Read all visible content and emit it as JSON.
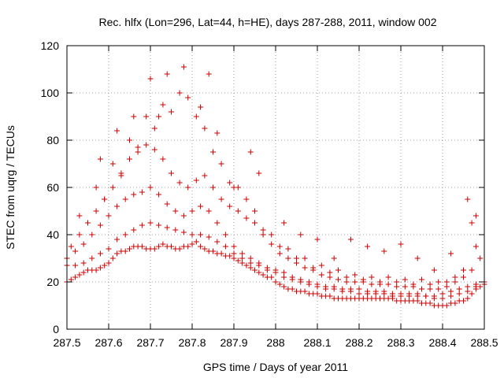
{
  "chart_data": {
    "type": "scatter",
    "title": "Rec. hlfx (Lon=296, Lat=44, h=HE), days 287-288, 2011, window 002",
    "xlabel": "GPS time / Days of year 2011",
    "ylabel": "STEC from uqrg / TECUs",
    "xlim": [
      287.5,
      288.5
    ],
    "ylim": [
      0,
      120
    ],
    "xticks": [
      287.5,
      287.6,
      287.7,
      287.8,
      287.9,
      288,
      288.1,
      288.2,
      288.3,
      288.4,
      288.5
    ],
    "xtick_labels": [
      "287.5",
      "287.6",
      "287.7",
      "287.8",
      "287.9",
      "288",
      "288.1",
      "288.2",
      "288.3",
      "288.4",
      "288.5"
    ],
    "yticks": [
      0,
      20,
      40,
      60,
      80,
      100,
      120
    ],
    "ytick_labels": [
      "0",
      "20",
      "40",
      "60",
      "80",
      "100",
      "120"
    ],
    "grid": true,
    "marker": "plus",
    "color": "#cc0000",
    "series": [
      {
        "name": "",
        "x": [
          287.5,
          287.51,
          287.52,
          287.53,
          287.54,
          287.55,
          287.56,
          287.57,
          287.58,
          287.59,
          287.6,
          287.61,
          287.62,
          287.63,
          287.64,
          287.65,
          287.66,
          287.67,
          287.68,
          287.69,
          287.7,
          287.71,
          287.72,
          287.73,
          287.74,
          287.75,
          287.76,
          287.77,
          287.78,
          287.79,
          287.8,
          287.81,
          287.82,
          287.83,
          287.84,
          287.85,
          287.86,
          287.87,
          287.88,
          287.89,
          287.9,
          287.91,
          287.92,
          287.93,
          287.94,
          287.95,
          287.96,
          287.97,
          287.98,
          287.99,
          288.0,
          288.01,
          288.02,
          288.03,
          288.04,
          288.05,
          288.06,
          288.07,
          288.08,
          288.09,
          288.1,
          288.11,
          288.12,
          288.13,
          288.14,
          288.15,
          288.16,
          288.17,
          288.18,
          288.19,
          288.2,
          288.21,
          288.22,
          288.23,
          288.24,
          288.25,
          288.26,
          288.27,
          288.28,
          288.29,
          288.3,
          288.31,
          288.32,
          288.33,
          288.34,
          288.35,
          288.36,
          288.37,
          288.38,
          288.39,
          288.4,
          288.41,
          288.42,
          288.43,
          288.44,
          288.45,
          288.46,
          288.47,
          288.48,
          288.49,
          288.5
        ],
        "y": [
          20,
          21,
          22,
          23,
          24,
          25,
          25,
          25,
          26,
          27,
          28,
          30,
          32,
          33,
          33,
          34,
          35,
          35,
          35,
          34,
          34,
          34,
          35,
          36,
          35,
          35,
          34,
          34,
          35,
          35,
          36,
          37,
          35,
          34,
          33,
          33,
          32,
          32,
          31,
          31,
          30,
          29,
          28,
          27,
          26,
          25,
          24,
          23,
          22,
          22,
          20,
          19,
          18,
          17,
          17,
          16,
          16,
          16,
          15,
          15,
          15,
          14,
          14,
          14,
          13,
          13,
          13,
          13,
          13,
          13,
          13,
          13,
          13,
          13,
          13,
          13,
          13,
          13,
          13,
          12,
          12,
          12,
          12,
          12,
          12,
          11,
          11,
          11,
          10,
          10,
          10,
          10,
          11,
          11,
          12,
          12,
          13,
          15,
          17,
          18,
          20
        ]
      },
      {
        "name": "",
        "x": [
          287.5,
          287.52,
          287.54,
          287.56,
          287.58,
          287.6,
          287.62,
          287.64,
          287.66,
          287.68,
          287.7,
          287.72,
          287.74,
          287.76,
          287.78,
          287.8,
          287.82,
          287.84,
          287.86,
          287.88,
          287.9,
          287.92,
          287.94,
          287.96,
          287.98,
          288.0,
          288.02,
          288.04,
          288.06,
          288.08,
          288.1,
          288.12,
          288.14,
          288.16,
          288.18,
          288.2,
          288.22,
          288.24,
          288.26,
          288.28,
          288.3,
          288.32,
          288.34,
          288.36,
          288.38,
          288.4,
          288.42,
          288.44,
          288.46,
          288.48,
          288.5
        ],
        "y": [
          27,
          27,
          28,
          30,
          32,
          34,
          38,
          40,
          42,
          44,
          45,
          44,
          43,
          42,
          41,
          40,
          40,
          39,
          37,
          35,
          32,
          30,
          28,
          27,
          25,
          24,
          22,
          21,
          20,
          19,
          18,
          17,
          17,
          16,
          16,
          15,
          15,
          15,
          15,
          14,
          14,
          14,
          14,
          14,
          13,
          13,
          14,
          15,
          16,
          18,
          19
        ]
      },
      {
        "name": "",
        "x": [
          287.5,
          287.52,
          287.54,
          287.56,
          287.58,
          287.6,
          287.62,
          287.64,
          287.66,
          287.68,
          287.7,
          287.72,
          287.74,
          287.76,
          287.78,
          287.8,
          287.82,
          287.84,
          287.86,
          287.88,
          287.9,
          287.92,
          287.94,
          287.96,
          287.98,
          288.0,
          288.02,
          288.04,
          288.06,
          288.08,
          288.1,
          288.12,
          288.14,
          288.16,
          288.18,
          288.2,
          288.22,
          288.24,
          288.26,
          288.28,
          288.3,
          288.32,
          288.34,
          288.36,
          288.38,
          288.4,
          288.42,
          288.44,
          288.46,
          288.48,
          288.5
        ],
        "y": [
          30,
          33,
          36,
          40,
          44,
          48,
          52,
          55,
          57,
          58,
          60,
          57,
          53,
          50,
          48,
          50,
          52,
          50,
          45,
          40,
          35,
          32,
          30,
          28,
          26,
          25,
          24,
          22,
          21,
          20,
          19,
          18,
          18,
          17,
          17,
          17,
          16,
          16,
          16,
          15,
          15,
          15,
          15,
          14,
          14,
          15,
          16,
          17,
          18,
          19,
          20
        ]
      },
      {
        "name": "",
        "x": [
          287.51,
          287.53,
          287.55,
          287.57,
          287.59,
          287.61,
          287.63,
          287.65,
          287.67,
          287.69,
          287.71,
          287.73,
          287.75,
          287.77,
          287.79,
          287.81,
          287.83,
          287.85,
          287.87,
          287.89,
          287.91,
          287.93,
          287.95,
          287.97,
          287.99,
          288.01,
          288.03,
          288.05,
          288.07,
          288.09,
          288.11,
          288.13,
          288.15,
          288.17,
          288.19,
          288.21,
          288.23,
          288.25,
          288.27,
          288.29,
          288.31,
          288.33,
          288.35,
          288.37,
          288.39,
          288.41,
          288.43,
          288.45,
          288.47,
          288.49
        ],
        "y": [
          35,
          40,
          45,
          50,
          55,
          60,
          66,
          72,
          77,
          78,
          76,
          72,
          66,
          62,
          60,
          63,
          65,
          60,
          55,
          52,
          50,
          47,
          45,
          40,
          36,
          32,
          30,
          28,
          26,
          25,
          23,
          22,
          21,
          20,
          20,
          20,
          19,
          19,
          19,
          18,
          18,
          18,
          17,
          17,
          17,
          18,
          20,
          22,
          25,
          30
        ]
      },
      {
        "name": "",
        "x": [
          287.53,
          287.57,
          287.61,
          287.65,
          287.69,
          287.73,
          287.77,
          287.81,
          287.85,
          287.89,
          287.93,
          287.97,
          288.01,
          288.05,
          288.09,
          288.13,
          288.17,
          288.21,
          288.25,
          288.29,
          288.33,
          288.37,
          288.41,
          288.45,
          288.48
        ],
        "y": [
          48,
          60,
          70,
          80,
          90,
          95,
          100,
          90,
          75,
          62,
          55,
          42,
          35,
          30,
          26,
          24,
          22,
          21,
          20,
          20,
          19,
          19,
          20,
          25,
          35
        ]
      },
      {
        "name": "",
        "x": [
          287.55,
          287.59,
          287.63,
          287.67,
          287.71,
          287.75,
          287.79,
          287.83,
          287.87,
          287.91,
          287.95,
          287.99,
          288.03,
          288.07,
          288.11,
          288.15,
          288.19,
          288.23,
          288.27,
          288.31,
          288.35,
          288.39,
          288.43,
          288.47
        ],
        "y": [
          45,
          55,
          65,
          75,
          85,
          92,
          98,
          85,
          70,
          60,
          50,
          40,
          34,
          30,
          27,
          25,
          23,
          22,
          22,
          21,
          21,
          20,
          22,
          45
        ]
      },
      {
        "name": "",
        "x": [
          287.58,
          287.62,
          287.66,
          287.7,
          287.72,
          287.74,
          287.78,
          287.82,
          287.84,
          287.86,
          287.9,
          287.94,
          287.96,
          288.02,
          288.06,
          288.1,
          288.14,
          288.18,
          288.22,
          288.26,
          288.3,
          288.34,
          288.38,
          288.42,
          288.46,
          288.48
        ],
        "y": [
          72,
          84,
          90,
          106,
          90,
          108,
          111,
          94,
          108,
          83,
          60,
          75,
          66,
          45,
          40,
          38,
          30,
          38,
          35,
          33,
          36,
          30,
          25,
          32,
          55,
          48
        ]
      }
    ]
  }
}
